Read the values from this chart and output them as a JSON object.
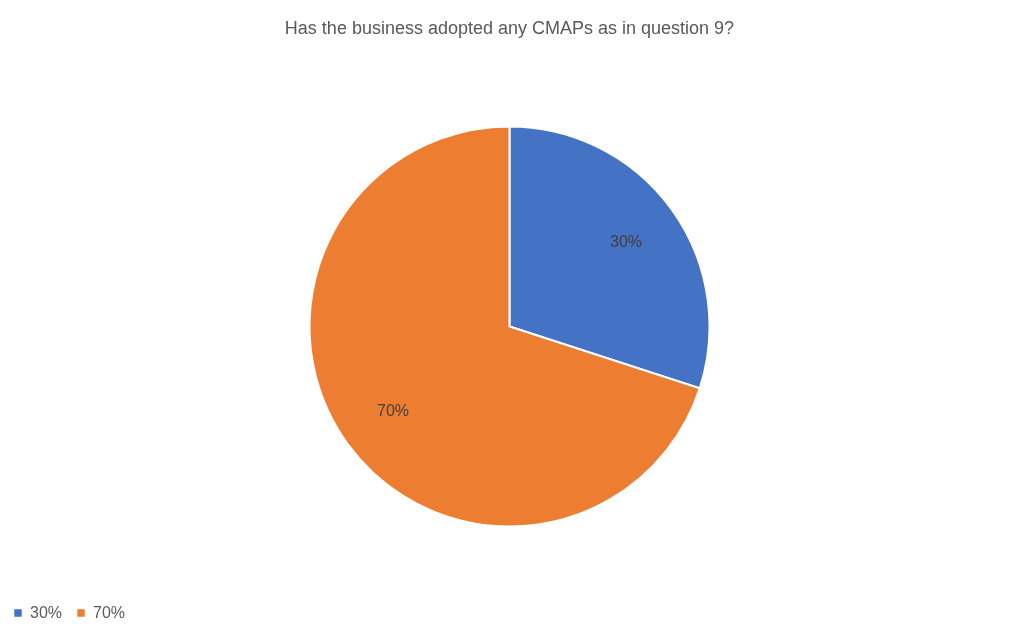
{
  "chart_data": {
    "type": "pie",
    "title": "Has the business adopted any CMAPs as in question 9?",
    "categories": [
      "30%",
      "70%"
    ],
    "values": [
      30,
      70
    ],
    "colors": [
      "#4472c4",
      "#ed7d31"
    ],
    "value_labels": [
      "30%",
      "70%"
    ],
    "legend": "bottom"
  }
}
